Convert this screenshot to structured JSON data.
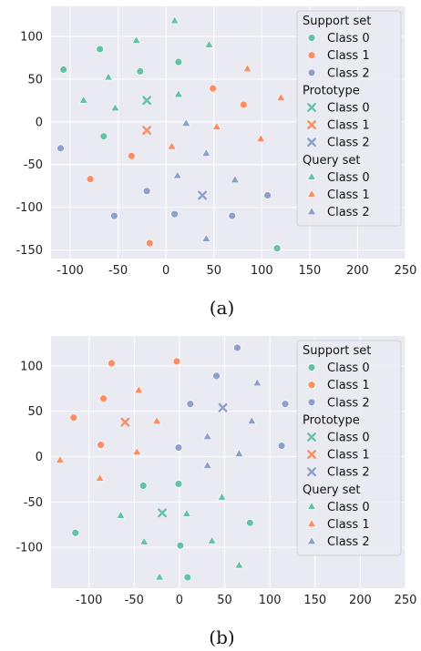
{
  "colors": {
    "class0": "#66c2a5",
    "class1": "#fc8d62",
    "class2": "#8da0cb",
    "plot_bg": "#eaeaf2",
    "grid": "#ffffff"
  },
  "legend": {
    "groups": [
      {
        "title": "Support set",
        "marker": "circle",
        "entries": [
          "Class 0",
          "Class 1",
          "Class 2"
        ]
      },
      {
        "title": "Prototype",
        "marker": "x",
        "entries": [
          "Class 0",
          "Class 1",
          "Class 2"
        ]
      },
      {
        "title": "Query set",
        "marker": "triangle",
        "entries": [
          "Class 0",
          "Class 1",
          "Class 2"
        ]
      }
    ],
    "placement": "top-right"
  },
  "chart_data": [
    {
      "type": "scatter",
      "caption": "(a)",
      "xlim": [
        -120,
        250
      ],
      "ylim": [
        -160,
        135
      ],
      "xticks": [
        -100,
        -50,
        0,
        50,
        100,
        150,
        200,
        250
      ],
      "yticks": [
        -150,
        -100,
        -50,
        0,
        50,
        100
      ],
      "grid": true,
      "series": [
        {
          "group": "Support set",
          "class": 0,
          "marker": "circle",
          "points": [
            [
              -107,
              61
            ],
            [
              -69,
              85
            ],
            [
              -27,
              59
            ],
            [
              13,
              70
            ],
            [
              -65,
              -17
            ],
            [
              116,
              -148
            ]
          ]
        },
        {
          "group": "Support set",
          "class": 1,
          "marker": "circle",
          "points": [
            [
              49,
              39
            ],
            [
              81,
              20
            ],
            [
              -36,
              -40
            ],
            [
              -79,
              -67
            ],
            [
              -17,
              -142
            ]
          ]
        },
        {
          "group": "Support set",
          "class": 2,
          "marker": "circle",
          "points": [
            [
              -110,
              -31
            ],
            [
              -20,
              -81
            ],
            [
              -54,
              -110
            ],
            [
              9,
              -108
            ],
            [
              69,
              -110
            ],
            [
              106,
              -86
            ]
          ]
        },
        {
          "group": "Prototype",
          "class": 0,
          "marker": "x",
          "points": [
            [
              -20,
              25
            ]
          ]
        },
        {
          "group": "Prototype",
          "class": 1,
          "marker": "x",
          "points": [
            [
              -20,
              -10
            ]
          ]
        },
        {
          "group": "Prototype",
          "class": 2,
          "marker": "x",
          "points": [
            [
              38,
              -86
            ]
          ]
        },
        {
          "group": "Query set",
          "class": 0,
          "marker": "triangle",
          "points": [
            [
              9,
              118
            ],
            [
              -31,
              95
            ],
            [
              45,
              90
            ],
            [
              -60,
              52
            ],
            [
              -86,
              25
            ],
            [
              -53,
              16
            ],
            [
              13,
              32
            ]
          ]
        },
        {
          "group": "Query set",
          "class": 1,
          "marker": "triangle",
          "points": [
            [
              85,
              62
            ],
            [
              120,
              28
            ],
            [
              53,
              -6
            ],
            [
              99,
              -20
            ],
            [
              6,
              -29
            ]
          ]
        },
        {
          "group": "Query set",
          "class": 2,
          "marker": "triangle",
          "points": [
            [
              21,
              -2
            ],
            [
              42,
              -37
            ],
            [
              12,
              -63
            ],
            [
              72,
              -68
            ],
            [
              42,
              -137
            ]
          ]
        }
      ]
    },
    {
      "type": "scatter",
      "caption": "(b)",
      "xlim": [
        -142,
        250
      ],
      "ylim": [
        -145,
        133
      ],
      "xticks": [
        -100,
        -50,
        0,
        50,
        100,
        150,
        200,
        250
      ],
      "yticks": [
        -100,
        -50,
        0,
        50,
        100
      ],
      "grid": true,
      "series": [
        {
          "group": "Support set",
          "class": 0,
          "marker": "circle",
          "points": [
            [
              -40,
              -32
            ],
            [
              -1,
              -30
            ],
            [
              78,
              -73
            ],
            [
              -115,
              -84
            ],
            [
              1,
              -98
            ],
            [
              9,
              -133
            ]
          ]
        },
        {
          "group": "Support set",
          "class": 1,
          "marker": "circle",
          "points": [
            [
              -75,
              103
            ],
            [
              -3,
              105
            ],
            [
              -84,
              64
            ],
            [
              -117,
              43
            ],
            [
              -87,
              13
            ]
          ]
        },
        {
          "group": "Support set",
          "class": 2,
          "marker": "circle",
          "points": [
            [
              64,
              120
            ],
            [
              41,
              89
            ],
            [
              12,
              58
            ],
            [
              117,
              58
            ],
            [
              -1,
              10
            ],
            [
              113,
              12
            ]
          ]
        },
        {
          "group": "Prototype",
          "class": 0,
          "marker": "x",
          "points": [
            [
              -19,
              -62
            ]
          ]
        },
        {
          "group": "Prototype",
          "class": 1,
          "marker": "x",
          "points": [
            [
              -60,
              38
            ]
          ]
        },
        {
          "group": "Prototype",
          "class": 2,
          "marker": "x",
          "points": [
            [
              48,
              54
            ]
          ]
        },
        {
          "group": "Query set",
          "class": 0,
          "marker": "triangle",
          "points": [
            [
              47,
              -45
            ],
            [
              -65,
              -65
            ],
            [
              8,
              -63
            ],
            [
              -39,
              -94
            ],
            [
              36,
              -93
            ],
            [
              -22,
              -133
            ],
            [
              66,
              -120
            ]
          ]
        },
        {
          "group": "Query set",
          "class": 1,
          "marker": "triangle",
          "points": [
            [
              -45,
              73
            ],
            [
              -25,
              39
            ],
            [
              -132,
              -4
            ],
            [
              -47,
              5
            ],
            [
              -88,
              -24
            ]
          ]
        },
        {
          "group": "Query set",
          "class": 2,
          "marker": "triangle",
          "points": [
            [
              86,
              81
            ],
            [
              80,
              39
            ],
            [
              31,
              22
            ],
            [
              66,
              3
            ],
            [
              31,
              -10
            ]
          ]
        }
      ]
    }
  ]
}
